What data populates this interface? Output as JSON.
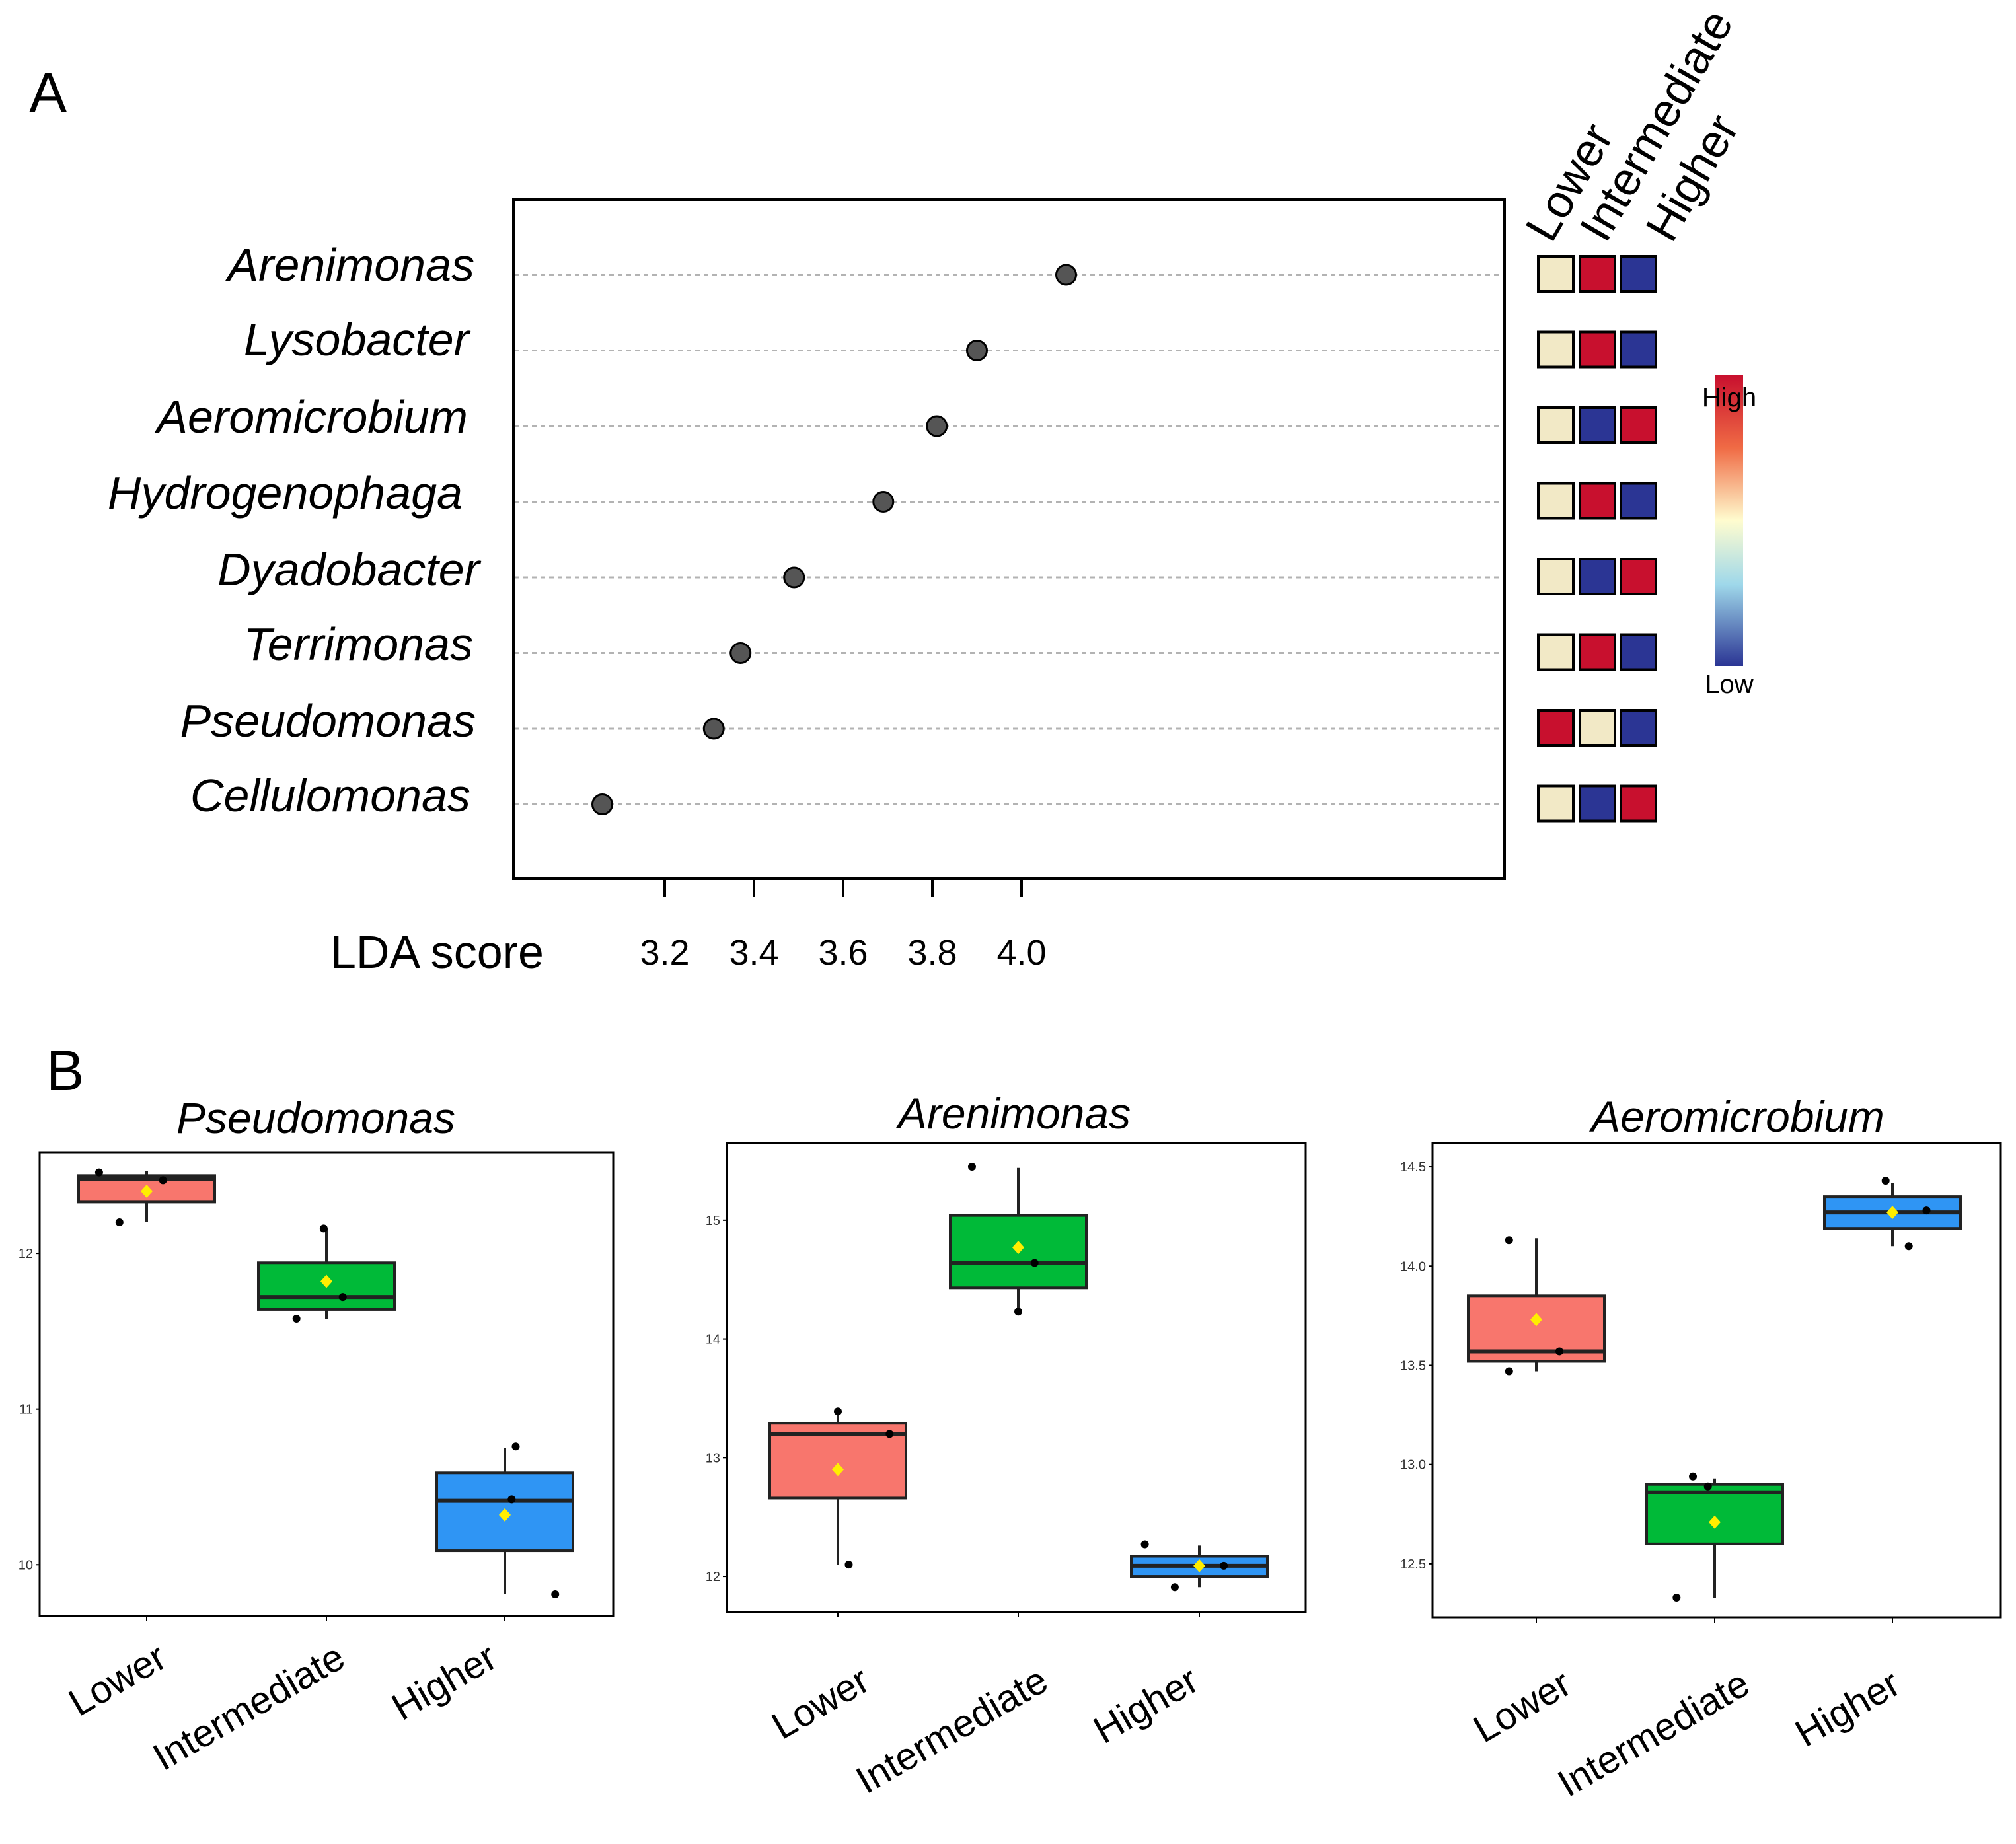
{
  "panels": {
    "a": {
      "letter": "A"
    },
    "b": {
      "letter": "B"
    }
  },
  "heat_legend": {
    "high_label": "High",
    "low_label": "Low"
  },
  "colors": {
    "heat_low": "#2b3594",
    "heat_mid": "#f2e9c6",
    "heat_high": "#c8102e",
    "lower_box": "#f8766d",
    "intermediate_box": "#00ba38",
    "higher_box": "#2f95f4",
    "mean_marker": "#ffee00",
    "point": "#555555"
  },
  "chart_data": [
    {
      "type": "scatter",
      "title": "",
      "xlabel": "LDA score",
      "x_ticks": [
        "3.2",
        "3.4",
        "3.6",
        "3.8",
        "4.0"
      ],
      "xlim": [
        2.8,
        4.15
      ],
      "categories": [
        "Arenimonas",
        "Lysobacter",
        "Aeromicrobium",
        "Hydrogenophaga",
        "Dyadobacter",
        "Terrimonas",
        "Pseudomonas",
        "Cellulomonas"
      ],
      "values": [
        4.1,
        3.9,
        3.81,
        3.69,
        3.49,
        3.37,
        3.31,
        3.06
      ],
      "grid": "dotted horizontal guide lines",
      "heatmap": {
        "type": "heatmap",
        "columns": [
          "Lower",
          "Intermediate",
          "Higher"
        ],
        "levels": [
          [
            "mid",
            "high",
            "low"
          ],
          [
            "mid",
            "high",
            "low"
          ],
          [
            "mid",
            "low",
            "high"
          ],
          [
            "mid",
            "high",
            "low"
          ],
          [
            "mid",
            "low",
            "high"
          ],
          [
            "mid",
            "high",
            "low"
          ],
          [
            "high",
            "mid",
            "low"
          ],
          [
            "mid",
            "low",
            "high"
          ]
        ]
      }
    },
    {
      "type": "box",
      "title": "Pseudomonas",
      "categories": [
        "Lower",
        "Intermediate",
        "Higher"
      ],
      "ylim": [
        9.67,
        12.65
      ],
      "y_ticks": [
        10,
        11,
        12
      ],
      "boxes": [
        {
          "q1": 12.33,
          "median": 12.48,
          "q3": 12.5,
          "whisker_low": 12.2,
          "whisker_high": 12.53,
          "mean": 12.4,
          "points": [
            [
              -0.35,
              12.52
            ],
            [
              -0.2,
              12.2
            ],
            [
              0.12,
              12.47
            ]
          ]
        },
        {
          "q1": 11.64,
          "median": 11.72,
          "q3": 11.94,
          "whisker_low": 11.58,
          "whisker_high": 12.16,
          "mean": 11.82,
          "points": [
            [
              -0.22,
              11.58
            ],
            [
              -0.02,
              12.16
            ],
            [
              0.12,
              11.72
            ]
          ]
        },
        {
          "q1": 10.09,
          "median": 10.41,
          "q3": 10.59,
          "whisker_low": 9.81,
          "whisker_high": 10.75,
          "mean": 10.32,
          "points": [
            [
              0.05,
              10.42
            ],
            [
              0.08,
              10.76
            ],
            [
              0.37,
              9.81
            ]
          ]
        }
      ]
    },
    {
      "type": "box",
      "title": "Arenimonas",
      "categories": [
        "Lower",
        "Intermediate",
        "Higher"
      ],
      "ylim": [
        11.7,
        15.65
      ],
      "y_ticks": [
        12,
        13,
        14,
        15
      ],
      "boxes": [
        {
          "q1": 12.66,
          "median": 13.2,
          "q3": 13.29,
          "whisker_low": 12.1,
          "whisker_high": 13.38,
          "mean": 12.9,
          "points": [
            [
              0.0,
              13.39
            ],
            [
              0.08,
              12.1
            ],
            [
              0.38,
              13.2
            ]
          ]
        },
        {
          "q1": 14.43,
          "median": 14.64,
          "q3": 15.04,
          "whisker_low": 14.23,
          "whisker_high": 15.44,
          "mean": 14.77,
          "points": [
            [
              -0.34,
              15.45
            ],
            [
              0.0,
              14.23
            ],
            [
              0.12,
              14.64
            ]
          ]
        },
        {
          "q1": 12.0,
          "median": 12.09,
          "q3": 12.17,
          "whisker_low": 11.91,
          "whisker_high": 12.26,
          "mean": 12.09,
          "points": [
            [
              -0.4,
              12.27
            ],
            [
              -0.18,
              11.91
            ],
            [
              0.18,
              12.09
            ]
          ]
        }
      ]
    },
    {
      "type": "box",
      "title": "Aeromicrobium",
      "categories": [
        "Lower",
        "Intermediate",
        "Higher"
      ],
      "ylim": [
        12.23,
        14.62
      ],
      "y_ticks": [
        "12.5",
        "13.0",
        "13.5",
        "14.0",
        "14.5"
      ],
      "boxes": [
        {
          "q1": 13.52,
          "median": 13.57,
          "q3": 13.85,
          "whisker_low": 13.47,
          "whisker_high": 14.14,
          "mean": 13.73,
          "points": [
            [
              -0.2,
              13.47
            ],
            [
              -0.2,
              14.13
            ],
            [
              0.17,
              13.57
            ]
          ]
        },
        {
          "q1": 12.6,
          "median": 12.86,
          "q3": 12.9,
          "whisker_low": 12.33,
          "whisker_high": 12.93,
          "mean": 12.71,
          "points": [
            [
              -0.28,
              12.33
            ],
            [
              -0.16,
              12.94
            ],
            [
              -0.05,
              12.89
            ]
          ]
        },
        {
          "q1": 14.19,
          "median": 14.27,
          "q3": 14.35,
          "whisker_low": 14.1,
          "whisker_high": 14.42,
          "mean": 14.27,
          "points": [
            [
              -0.05,
              14.43
            ],
            [
              0.12,
              14.1
            ],
            [
              0.25,
              14.28
            ]
          ]
        }
      ]
    }
  ]
}
